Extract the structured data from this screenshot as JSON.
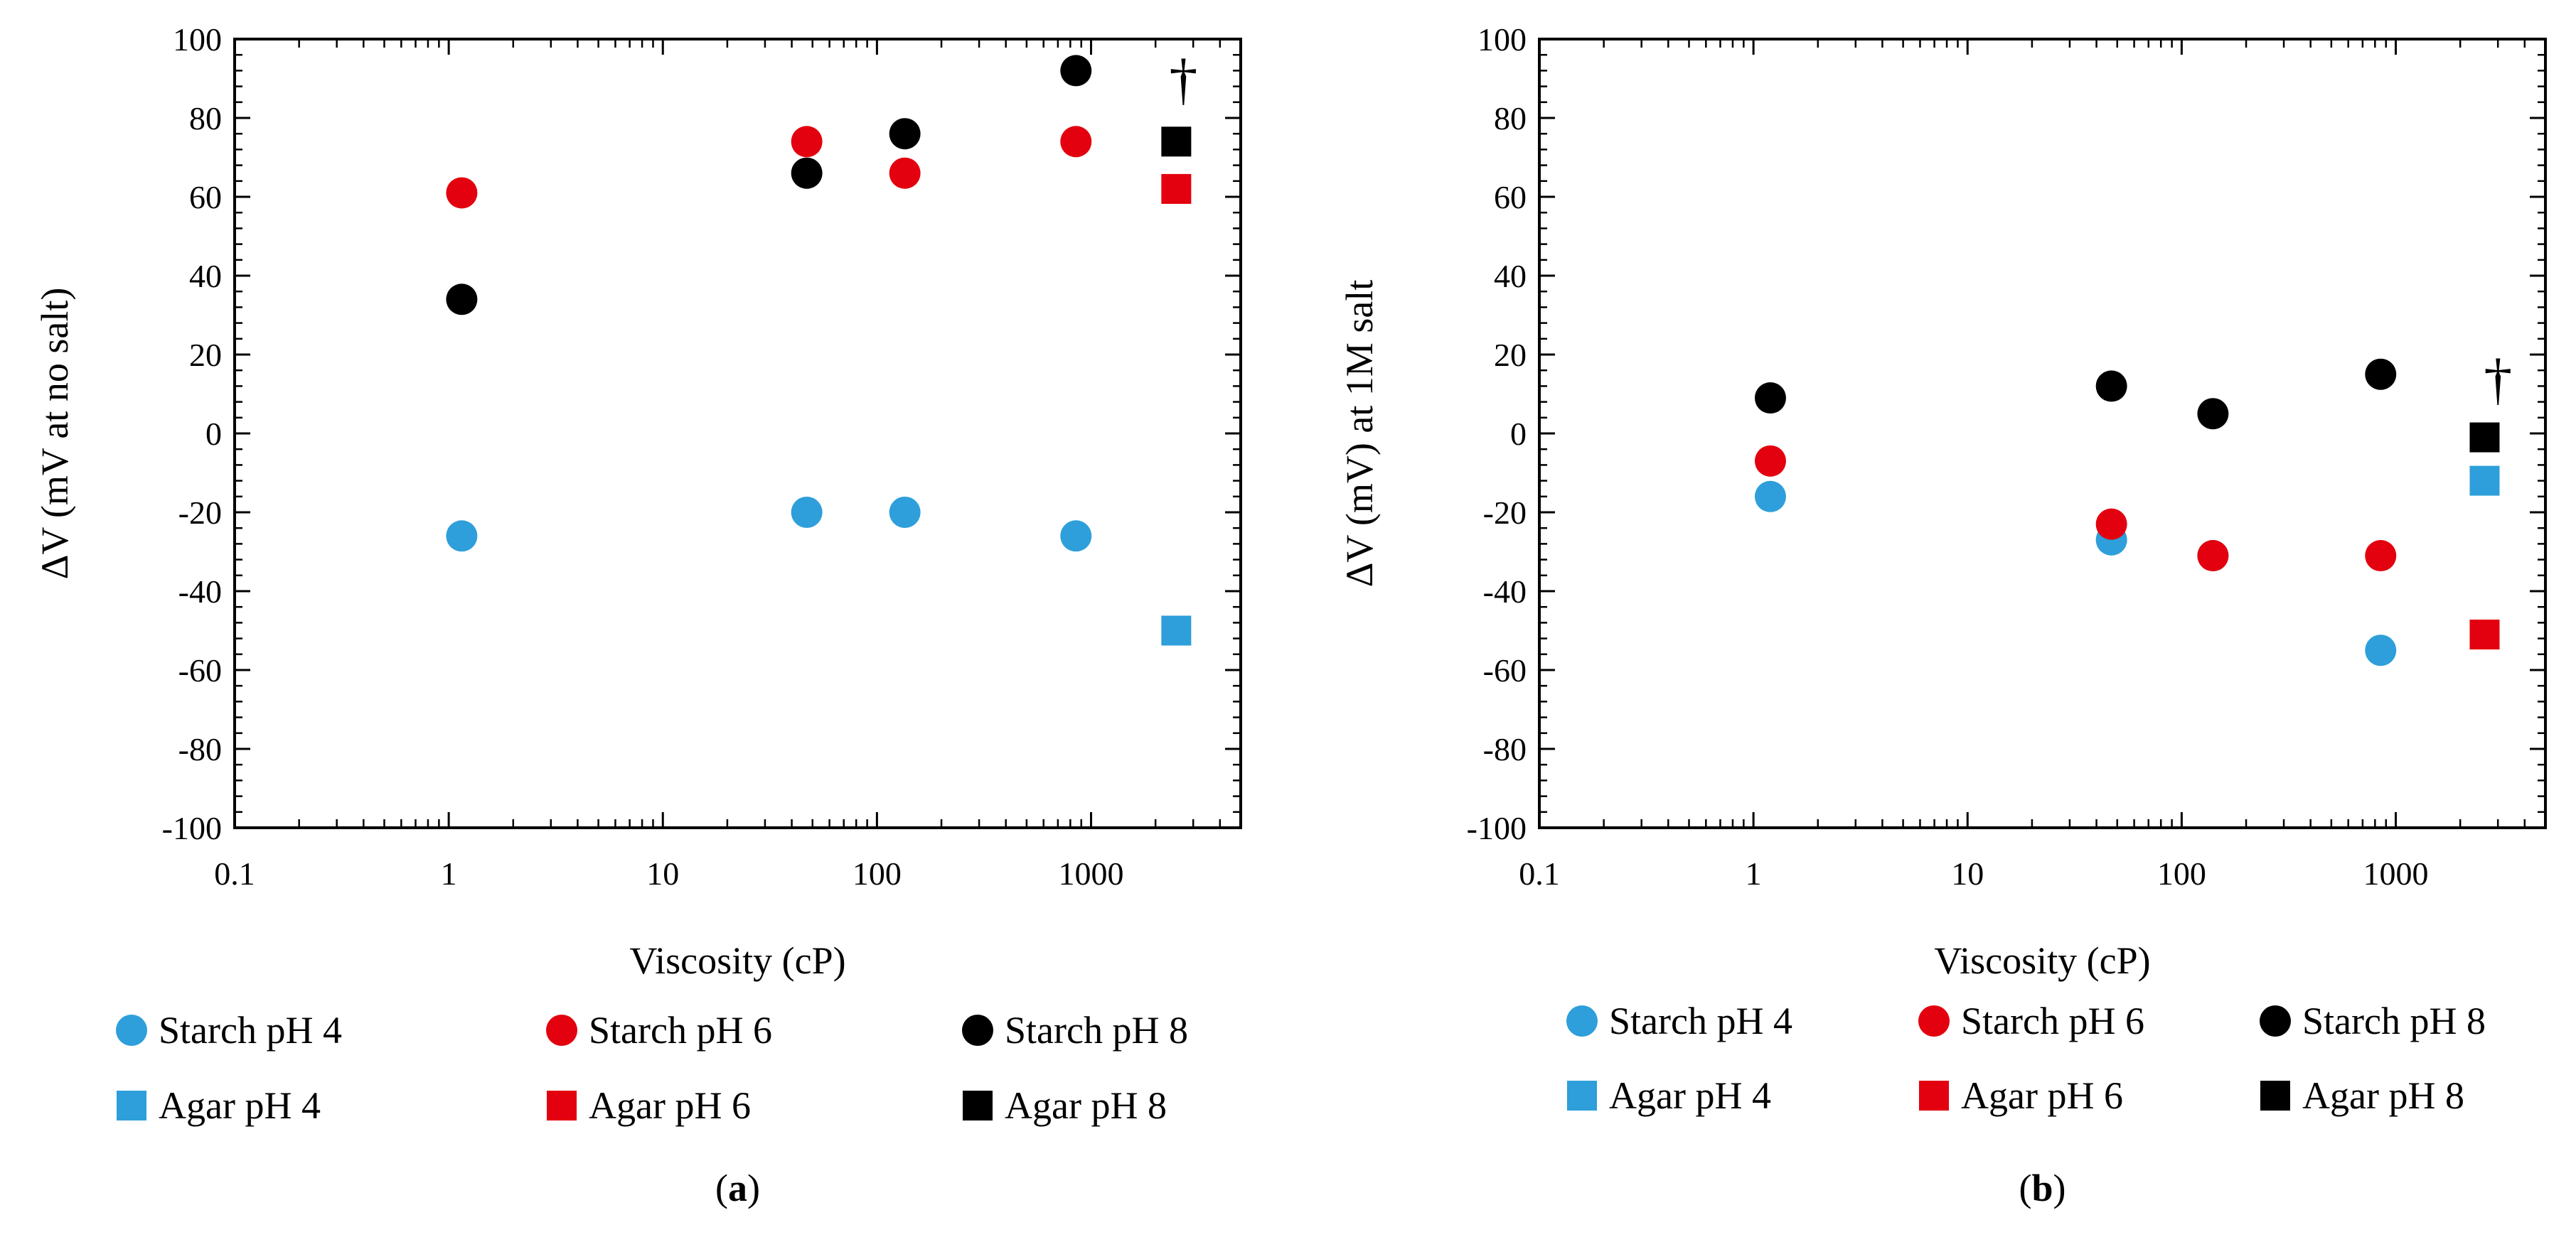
{
  "colors": {
    "pH 4": "#2e9fda",
    "pH 6": "#e3000f",
    "pH 8": "#000000"
  },
  "chart_data": [
    {
      "type": "scatter",
      "panel_label": "a",
      "xlabel": "Viscosity (cP)",
      "ylabel": "ΔV (mV at no salt)",
      "xscale": "log",
      "xlim": [
        0.1,
        5000
      ],
      "ylim": [
        -100,
        100
      ],
      "xticks": [
        0.1,
        1,
        10,
        100,
        1000
      ],
      "xtick_labels": [
        "0.1",
        "1",
        "10",
        "100",
        "1000"
      ],
      "yticks": [
        -100,
        -80,
        -60,
        -40,
        -20,
        0,
        20,
        40,
        60,
        80,
        100
      ],
      "ytick_labels": [
        "-100",
        "-80",
        "-60",
        "-40",
        "-20",
        "0",
        "20",
        "40",
        "60",
        "80",
        "100"
      ],
      "grid": false,
      "legend": "bottom",
      "annotations": [
        {
          "text": "†",
          "x": 2700,
          "y": 90
        }
      ],
      "series": [
        {
          "name": "Starch pH 4",
          "marker": "circle",
          "color": "#2e9fda",
          "points": [
            [
              1.15,
              -26
            ],
            [
              47,
              -20
            ],
            [
              135,
              -20
            ],
            [
              850,
              -26
            ]
          ]
        },
        {
          "name": "Starch pH 6",
          "marker": "circle",
          "color": "#e3000f",
          "points": [
            [
              1.15,
              61
            ],
            [
              47,
              74
            ],
            [
              135,
              66
            ],
            [
              850,
              74
            ]
          ]
        },
        {
          "name": "Starch pH 8",
          "marker": "circle",
          "color": "#000000",
          "points": [
            [
              1.15,
              34
            ],
            [
              47,
              66
            ],
            [
              135,
              76
            ],
            [
              850,
              92
            ]
          ]
        },
        {
          "name": "Agar pH 4",
          "marker": "square",
          "color": "#2e9fda",
          "points": [
            [
              2500,
              -50
            ]
          ]
        },
        {
          "name": "Agar pH 6",
          "marker": "square",
          "color": "#e3000f",
          "points": [
            [
              2500,
              62
            ]
          ]
        },
        {
          "name": "Agar pH 8",
          "marker": "square",
          "color": "#000000",
          "points": [
            [
              2500,
              74
            ]
          ]
        }
      ]
    },
    {
      "type": "scatter",
      "panel_label": "b",
      "xlabel": "Viscosity (cP)",
      "ylabel": "ΔV (mV) at 1M salt",
      "xscale": "log",
      "xlim": [
        0.1,
        5000
      ],
      "ylim": [
        -100,
        100
      ],
      "xticks": [
        0.1,
        1,
        10,
        100,
        1000
      ],
      "xtick_labels": [
        "0.1",
        "1",
        "10",
        "100",
        "1000"
      ],
      "yticks": [
        -100,
        -80,
        -60,
        -40,
        -20,
        0,
        20,
        40,
        60,
        80,
        100
      ],
      "ytick_labels": [
        "-100",
        "-80",
        "-60",
        "-40",
        "-20",
        "0",
        "20",
        "40",
        "60",
        "80",
        "100"
      ],
      "grid": false,
      "legend": "bottom",
      "annotations": [
        {
          "text": "†",
          "x": 3000,
          "y": 14
        }
      ],
      "series": [
        {
          "name": "Starch pH 4",
          "marker": "circle",
          "color": "#2e9fda",
          "points": [
            [
              1.2,
              -16
            ],
            [
              47,
              -27
            ],
            [
              140,
              -31
            ],
            [
              850,
              -55
            ]
          ]
        },
        {
          "name": "Starch pH 6",
          "marker": "circle",
          "color": "#e3000f",
          "points": [
            [
              1.2,
              -7
            ],
            [
              47,
              -23
            ],
            [
              140,
              -31
            ],
            [
              850,
              -31
            ]
          ]
        },
        {
          "name": "Starch pH 8",
          "marker": "circle",
          "color": "#000000",
          "points": [
            [
              1.2,
              9
            ],
            [
              47,
              12
            ],
            [
              140,
              5
            ],
            [
              850,
              15
            ]
          ]
        },
        {
          "name": "Agar pH 4",
          "marker": "square",
          "color": "#2e9fda",
          "points": [
            [
              2600,
              -12
            ]
          ]
        },
        {
          "name": "Agar pH 6",
          "marker": "square",
          "color": "#e3000f",
          "points": [
            [
              2600,
              -51
            ]
          ]
        },
        {
          "name": "Agar pH 8",
          "marker": "square",
          "color": "#000000",
          "points": [
            [
              2600,
              -1
            ]
          ]
        }
      ]
    }
  ]
}
